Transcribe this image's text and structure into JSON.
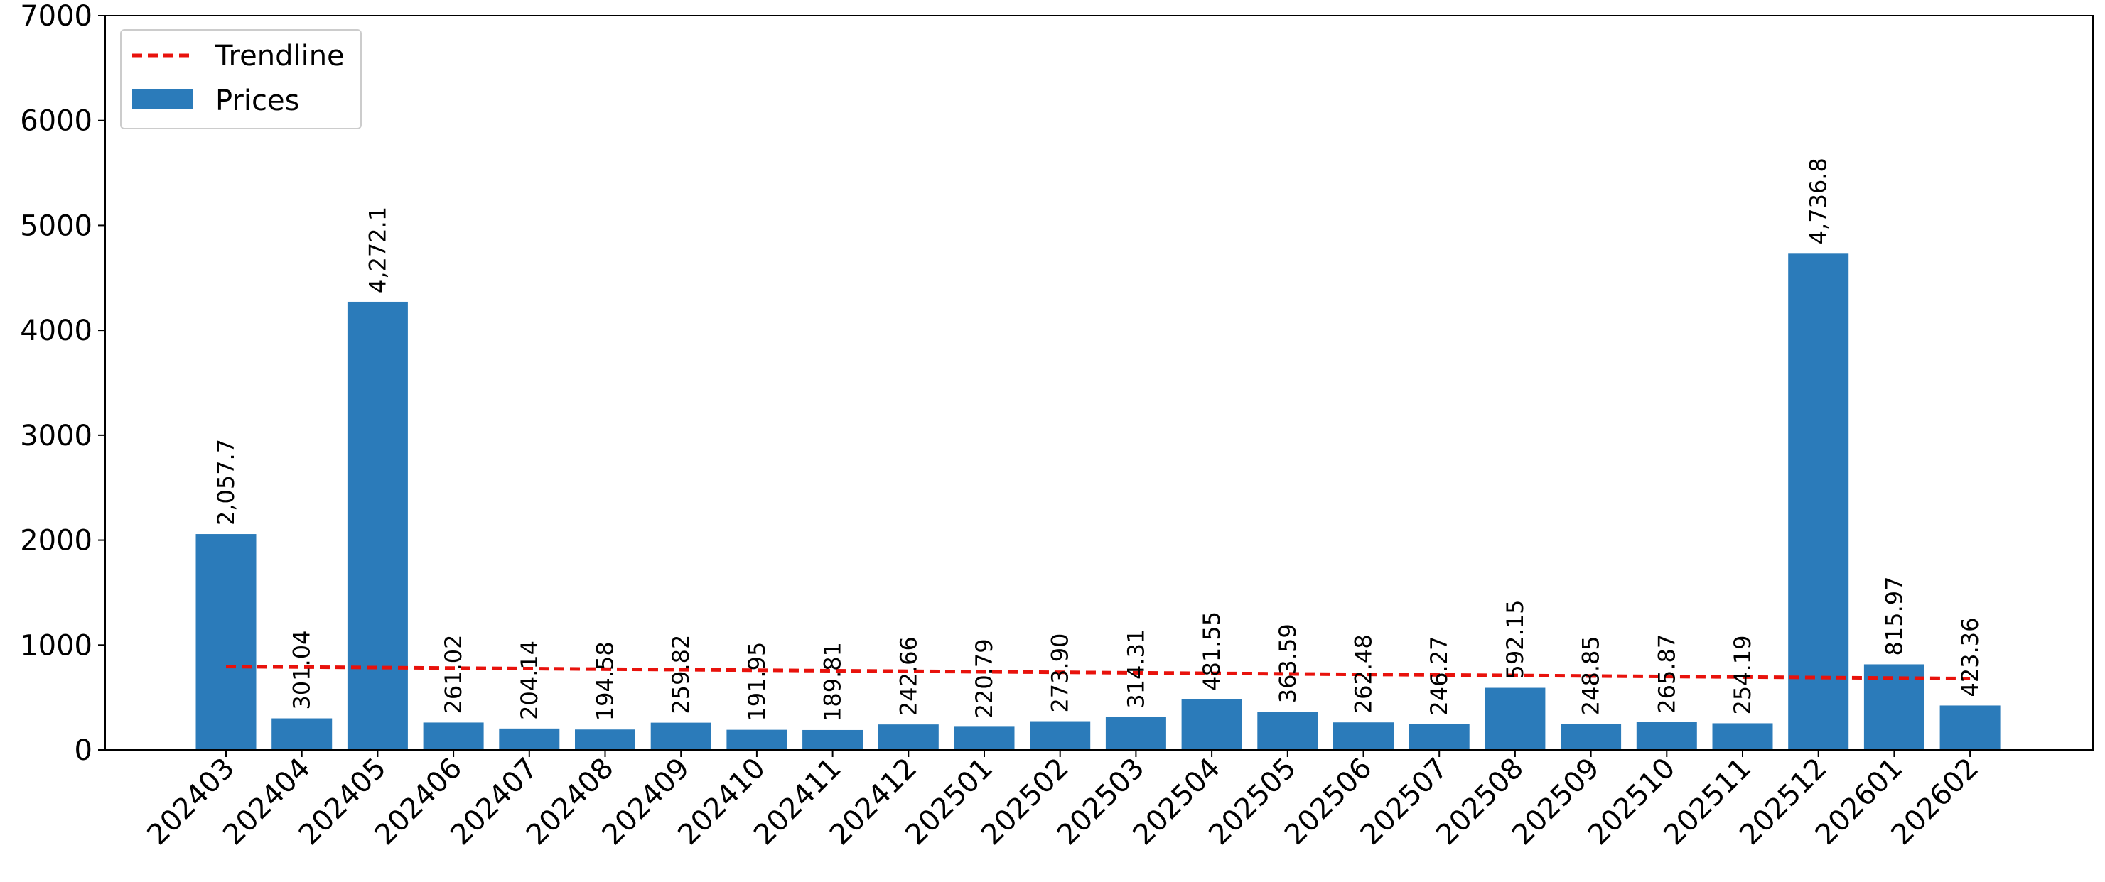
{
  "chart_data": {
    "type": "bar",
    "title": "",
    "xlabel": "",
    "ylabel": "",
    "ylim": [
      0,
      7000
    ],
    "yticks": [
      0,
      1000,
      2000,
      3000,
      4000,
      5000,
      6000,
      7000
    ],
    "grid": false,
    "legend_position": "top-left",
    "categories": [
      "202403",
      "202404",
      "202405",
      "202406",
      "202407",
      "202408",
      "202409",
      "202410",
      "202411",
      "202412",
      "202501",
      "202502",
      "202503",
      "202504",
      "202505",
      "202506",
      "202507",
      "202508",
      "202509",
      "202510",
      "202511",
      "202512",
      "202601",
      "202602"
    ],
    "series": [
      {
        "name": "Prices",
        "kind": "bar",
        "color": "#2b7bba",
        "values": [
          2057.7,
          301.04,
          4272.1,
          261.02,
          204.14,
          194.58,
          259.82,
          191.95,
          189.81,
          242.66,
          220.79,
          273.9,
          314.31,
          481.55,
          363.59,
          262.48,
          246.27,
          592.15,
          248.85,
          265.87,
          254.19,
          4736.8,
          815.97,
          423.36
        ],
        "labels": [
          "2,057.7",
          "301.04",
          "4,272.1",
          "261.02",
          "204.14",
          "194.58",
          "259.82",
          "191.95",
          "189.81",
          "242.66",
          "220.79",
          "273.90",
          "314.31",
          "481.55",
          "363.59",
          "262.48",
          "246.27",
          "592.15",
          "248.85",
          "265.87",
          "254.19",
          "4,736.8",
          "815.97",
          "423.36"
        ]
      },
      {
        "name": "Trendline",
        "kind": "line",
        "style": "dashed",
        "color": "#e8120c",
        "start": 795,
        "end": 680
      }
    ]
  }
}
